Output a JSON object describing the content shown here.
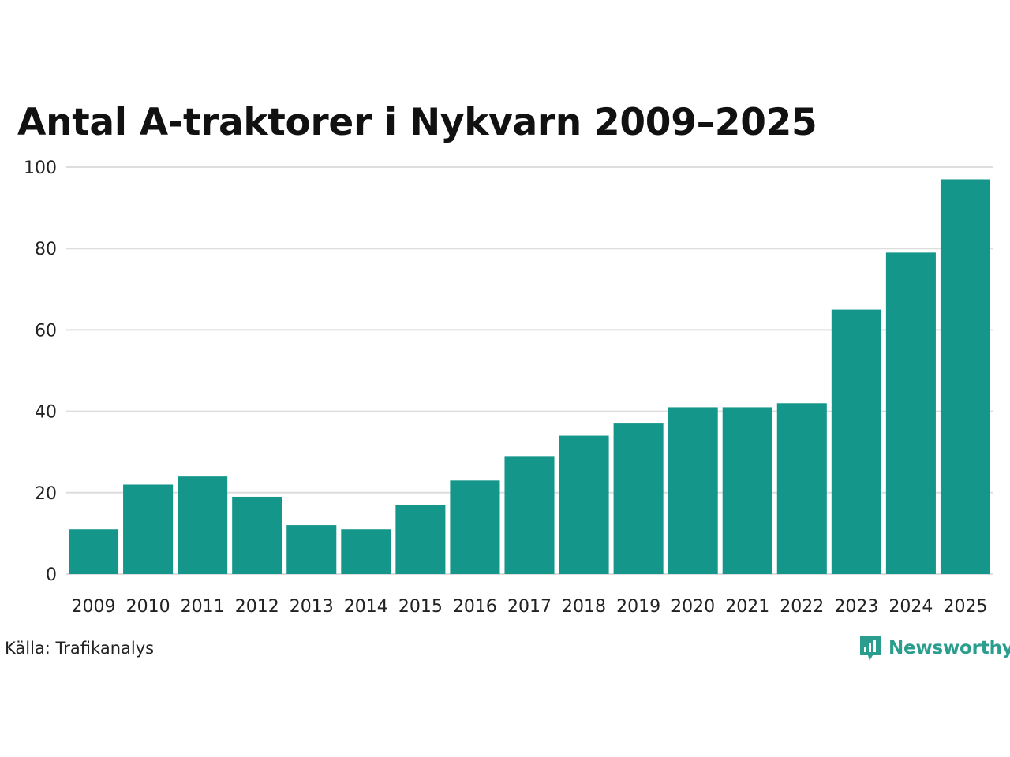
{
  "title": "Antal A-traktorer i Nykvarn 2009–2025",
  "source": "Källa: Trafikanalys",
  "brand": {
    "name": "Newsworthy",
    "color": "#2a9d8f",
    "logo_icon": "newsworthy-chart-bubble-icon"
  },
  "colors": {
    "bar": "#14968a",
    "grid": "#dddddd",
    "text": "#222222"
  },
  "chart_data": {
    "type": "bar",
    "title": "Antal A-traktorer i Nykvarn 2009–2025",
    "xlabel": "",
    "ylabel": "",
    "categories": [
      "2009",
      "2010",
      "2011",
      "2012",
      "2013",
      "2014",
      "2015",
      "2016",
      "2017",
      "2018",
      "2019",
      "2020",
      "2021",
      "2022",
      "2023",
      "2024",
      "2025"
    ],
    "values": [
      11,
      22,
      24,
      19,
      12,
      11,
      17,
      23,
      29,
      34,
      37,
      41,
      41,
      42,
      65,
      79,
      97
    ],
    "ylim": [
      0,
      100
    ],
    "yticks": [
      0,
      20,
      40,
      60,
      80,
      100
    ],
    "grid": true,
    "legend": "none"
  }
}
